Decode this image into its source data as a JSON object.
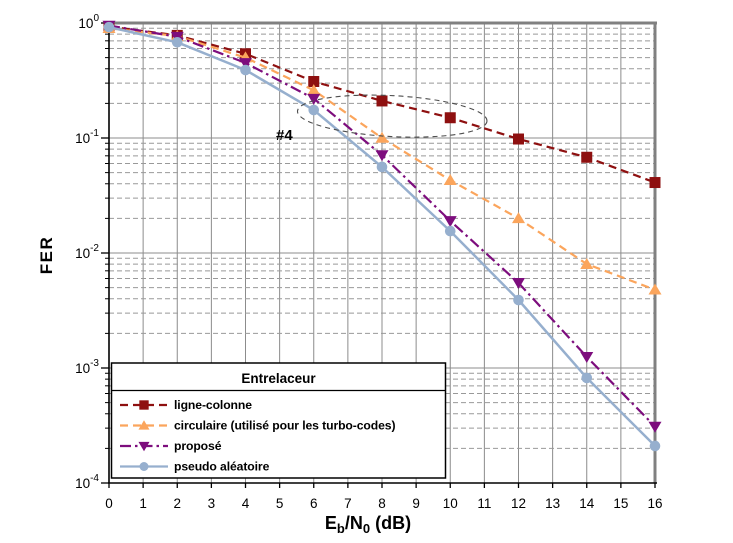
{
  "figure": {
    "background": "#ffffff"
  },
  "chart_data": {
    "type": "line",
    "title": "",
    "xlabel": "Eb/N0 (dB)",
    "xlabel_parts": [
      {
        "text": "E",
        "style": "normal"
      },
      {
        "text": "b",
        "style": "sub"
      },
      {
        "text": "/N",
        "style": "normal"
      },
      {
        "text": "0",
        "style": "sub"
      },
      {
        "text": " (dB)",
        "style": "normal"
      }
    ],
    "ylabel": "FER",
    "xlim": [
      0,
      16
    ],
    "ylim": [
      0.0001,
      1
    ],
    "x_ticks": [
      "0",
      "1",
      "2",
      "3",
      "4",
      "5",
      "6",
      "7",
      "8",
      "9",
      "10",
      "11",
      "12",
      "13",
      "14",
      "15",
      "16"
    ],
    "y_ticks": [
      {
        "base": "10",
        "exp": "0"
      },
      {
        "base": "10",
        "exp": "-1"
      },
      {
        "base": "10",
        "exp": "-2"
      },
      {
        "base": "10",
        "exp": "-3"
      },
      {
        "base": "10",
        "exp": "-4"
      }
    ],
    "grid": {
      "major_color": "#8c8c8c",
      "minor_color": "#999999",
      "minor_style": "dashed",
      "frame_color": "#808080",
      "axis_color": "#000000"
    },
    "x": [
      0,
      2,
      4,
      6,
      8,
      10,
      12,
      14,
      16
    ],
    "series": [
      {
        "name": "ligne-colonne",
        "color": "#8E1010",
        "line_style": "dashed",
        "marker": "square",
        "values": [
          0.93,
          0.78,
          0.54,
          0.31,
          0.21,
          0.15,
          0.098,
          0.068,
          0.041
        ]
      },
      {
        "name": "circulaire (utilisé pour les turbo-codes)",
        "color": "#FBA55C",
        "line_style": "dashed",
        "marker": "triangle-up",
        "values": [
          0.9,
          0.77,
          0.5,
          0.26,
          0.1,
          0.043,
          0.02,
          0.008,
          0.0048
        ]
      },
      {
        "name": "proposé",
        "color": "#7D0D7D",
        "line_style": "dash-dot",
        "marker": "triangle-down",
        "values": [
          0.95,
          0.76,
          0.45,
          0.22,
          0.071,
          0.019,
          0.0055,
          0.00125,
          0.00031
        ]
      },
      {
        "name": "pseudo aléatoire",
        "color": "#96AFCE",
        "line_style": "solid",
        "marker": "circle",
        "values": [
          0.92,
          0.68,
          0.39,
          0.175,
          0.056,
          0.0155,
          0.0039,
          0.00082,
          0.00021
        ]
      }
    ],
    "legend": {
      "title": "Entrelaceur",
      "position": "lower-left",
      "border_color": "#000000",
      "background": "#ffffff"
    },
    "annotation": {
      "label": "#4",
      "ellipse": {
        "cx": 8.3,
        "cy": 0.155,
        "rx_units": 2.78,
        "ry_decades": 0.178,
        "rotation_deg": 3,
        "color": "#4d4d4d",
        "style": "dashed"
      }
    }
  }
}
